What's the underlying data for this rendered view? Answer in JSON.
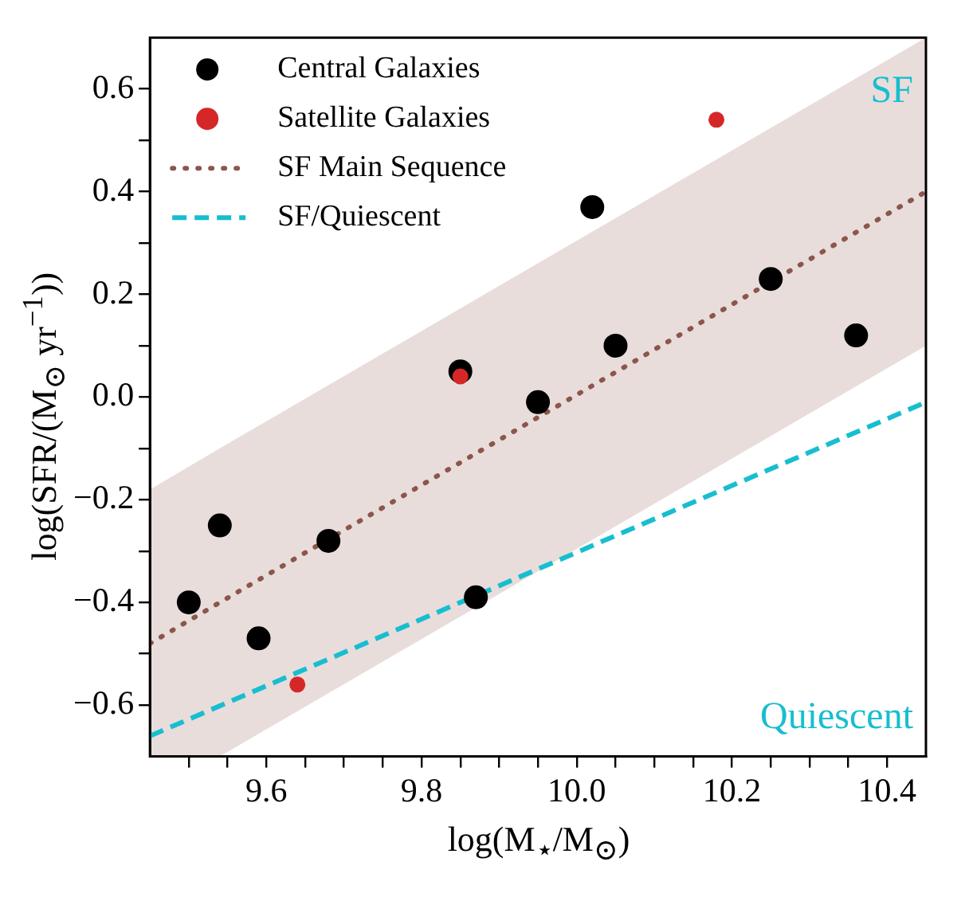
{
  "chart_data": {
    "type": "scatter",
    "xlabel": "log(M$_{⋆}$/M$_{⊙}$)",
    "ylabel": "log(SFR/(M$_{⊙}$ yr$^{−1}$))",
    "xlim": [
      9.45,
      10.45
    ],
    "ylim": [
      -0.7,
      0.7
    ],
    "xticks": [
      {
        "value": 9.5,
        "label": null
      },
      {
        "value": 9.55,
        "label": null
      },
      {
        "value": 9.6,
        "label": "9.6"
      },
      {
        "value": 9.65,
        "label": null
      },
      {
        "value": 9.7,
        "label": null
      },
      {
        "value": 9.75,
        "label": null
      },
      {
        "value": 9.8,
        "label": "9.8"
      },
      {
        "value": 9.85,
        "label": null
      },
      {
        "value": 9.9,
        "label": null
      },
      {
        "value": 9.95,
        "label": null
      },
      {
        "value": 10,
        "label": "10.0"
      },
      {
        "value": 10.05,
        "label": null
      },
      {
        "value": 10.1,
        "label": null
      },
      {
        "value": 10.15,
        "label": null
      },
      {
        "value": 10.2,
        "label": "10.2"
      },
      {
        "value": 10.25,
        "label": null
      },
      {
        "value": 10.3,
        "label": null
      },
      {
        "value": 10.35,
        "label": null
      },
      {
        "value": 10.4,
        "label": "10.4"
      }
    ],
    "yticks": [
      {
        "value": -0.6,
        "label": "−0.6"
      },
      {
        "value": -0.5,
        "label": null
      },
      {
        "value": -0.4,
        "label": "−0.4"
      },
      {
        "value": -0.3,
        "label": null
      },
      {
        "value": -0.2,
        "label": "−0.2"
      },
      {
        "value": -0.1,
        "label": null
      },
      {
        "value": 0,
        "label": "0.0"
      },
      {
        "value": 0.1,
        "label": null
      },
      {
        "value": 0.2,
        "label": "0.2"
      },
      {
        "value": 0.3,
        "label": null
      },
      {
        "value": 0.4,
        "label": "0.4"
      },
      {
        "value": 0.5,
        "label": null
      },
      {
        "value": 0.6,
        "label": "0.6"
      }
    ],
    "legend": "top left",
    "grid": false,
    "annotations": [
      "SF",
      "Quiescent"
    ],
    "series": [
      {
        "name": "Central Galaxies",
        "marker": "circle",
        "color": "#000000",
        "x": [
          9.5,
          9.54,
          9.59,
          9.68,
          9.87,
          9.95,
          9.85,
          10.02,
          10.05,
          10.25,
          10.36
        ],
        "values": [
          -0.4,
          -0.25,
          -0.47,
          -0.28,
          -0.39,
          -0.01,
          0.05,
          0.37,
          0.1,
          0.23,
          0.12
        ]
      },
      {
        "name": "Satellite Galaxies",
        "marker": "circle",
        "color": "#d62728",
        "x": [
          9.64,
          9.85,
          10.18
        ],
        "values": [
          -0.56,
          0.04,
          0.54
        ]
      },
      {
        "name": "SF Main Sequence",
        "type": "line",
        "marker": "none",
        "line_style": "dotted",
        "color": "#8c564b",
        "x": [
          9.45,
          9.54,
          10.45
        ],
        "values": [
          -0.48,
          -0.4,
          0.4
        ],
        "lower": [
          -0.7,
          -0.7,
          0.1
        ],
        "upper": [
          -0.18,
          -0.1,
          0.7
        ]
      },
      {
        "name": "SF/Quiescent",
        "type": "line",
        "marker": "none",
        "line_style": "dashed",
        "color": "#17becf",
        "x": [
          9.45,
          10.45
        ],
        "values": [
          -0.66,
          -0.01
        ]
      }
    ]
  }
}
